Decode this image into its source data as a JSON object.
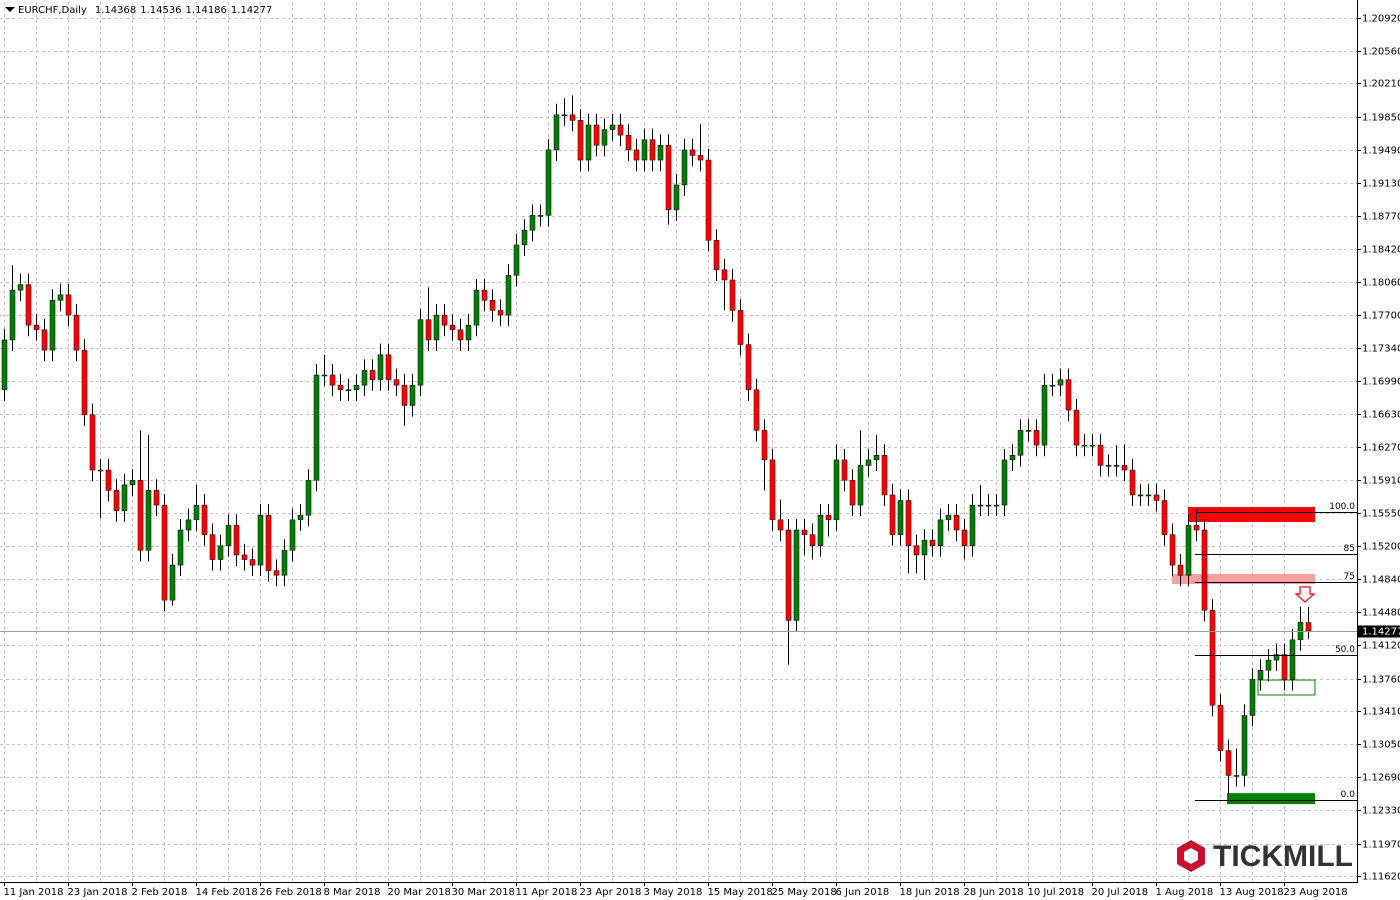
{
  "chart_data": {
    "type": "candlestick",
    "title": "EURCHF,Daily",
    "categories": [
      "11 Jan 2018",
      null,
      null,
      null,
      null,
      null,
      null,
      null,
      "23 Jan 2018",
      null,
      null,
      null,
      null,
      null,
      null,
      null,
      "2 Feb 2018",
      null,
      null,
      null,
      null,
      null,
      null,
      null,
      "14 Feb 2018",
      null,
      null,
      null,
      null,
      null,
      null,
      null,
      "26 Feb 2018",
      null,
      null,
      null,
      null,
      null,
      null,
      null,
      "8 Mar 2018",
      null,
      null,
      null,
      null,
      null,
      null,
      null,
      "20 Mar 2018",
      null,
      null,
      null,
      null,
      null,
      null,
      null,
      "30 Mar 2018",
      null,
      null,
      null,
      null,
      null,
      null,
      null,
      "11 Apr 2018",
      null,
      null,
      null,
      null,
      null,
      null,
      null,
      "23 Apr 2018",
      null,
      null,
      null,
      null,
      null,
      null,
      null,
      "3 May 2018",
      null,
      null,
      null,
      null,
      null,
      null,
      null,
      "15 May 2018",
      null,
      null,
      null,
      null,
      null,
      null,
      null,
      "25 May 2018",
      null,
      null,
      null,
      null,
      null,
      null,
      null,
      "6 Jun 2018",
      null,
      null,
      null,
      null,
      null,
      null,
      null,
      "18 Jun 2018",
      null,
      null,
      null,
      null,
      null,
      null,
      null,
      "28 Jun 2018",
      null,
      null,
      null,
      null,
      null,
      null,
      null,
      "10 Jul 2018",
      null,
      null,
      null,
      null,
      null,
      null,
      null,
      "20 Jul 2018",
      null,
      null,
      null,
      null,
      null,
      null,
      null,
      "1 Aug 2018",
      null,
      null,
      null,
      null,
      null,
      null,
      null,
      "13 Aug 2018",
      null,
      null,
      null,
      null,
      null,
      null,
      null,
      "23 Aug 2018",
      null,
      null,
      null
    ],
    "open": [
      1.1689,
      1.1743,
      1.1797,
      1.1803,
      1.1759,
      1.1754,
      1.1732,
      1.1786,
      1.1792,
      1.177,
      1.1732,
      1.1662,
      1.1602,
      1.1602,
      1.158,
      1.1558,
      1.1586,
      1.1591,
      1.1515,
      1.158,
      1.1564,
      1.1461,
      1.1499,
      1.1537,
      1.1548,
      1.1564,
      1.1532,
      1.1505,
      1.152,
      1.1542,
      1.151,
      1.1505,
      1.1499,
      1.1553,
      1.1493,
      1.1488,
      1.1515,
      1.1548,
      1.1553,
      1.1591,
      1.1705,
      1.1705,
      1.1694,
      1.1689,
      1.1689,
      1.1694,
      1.171,
      1.17,
      1.1727,
      1.17,
      1.1694,
      1.1672,
      1.1694,
      1.1765,
      1.1743,
      1.177,
      1.1759,
      1.1754,
      1.1743,
      1.1759,
      1.1797,
      1.1786,
      1.1775,
      1.177,
      1.1813,
      1.1846,
      1.1862,
      1.1878,
      1.1878,
      1.1949,
      1.1987,
      1.1987,
      1.1981,
      1.1938,
      1.1976,
      1.1954,
      1.1971,
      1.1976,
      1.1965,
      1.1949,
      1.1938,
      1.196,
      1.1938,
      1.1954,
      1.1884,
      1.1911,
      1.1949,
      1.1943,
      1.1938,
      1.1851,
      1.1819,
      1.1808,
      1.1775,
      1.1738,
      1.1689,
      1.1645,
      1.1613,
      1.1548,
      1.1537,
      1.1439,
      1.1537,
      1.1532,
      1.152,
      1.1553,
      1.1548,
      1.1613,
      1.1591,
      1.1564,
      1.1607,
      1.1613,
      1.1618,
      1.1575,
      1.1532,
      1.1569,
      1.152,
      1.151,
      1.1526,
      1.152,
      1.1548,
      1.1553,
      1.1537,
      1.152,
      1.1564,
      1.1564,
      1.1564,
      1.1564,
      1.1613,
      1.1618,
      1.1645,
      1.1645,
      1.1629,
      1.1694,
      1.1694,
      1.17,
      1.1667,
      1.1629,
      1.1629,
      1.1629,
      1.1607,
      1.1607,
      1.1607,
      1.1602,
      1.1575,
      1.1575,
      1.1575,
      1.1569,
      1.1532,
      1.1499,
      1.1488,
      1.1542,
      1.1537,
      1.145,
      1.1347,
      1.1298,
      1.1271,
      1.1271,
      1.1336,
      1.1375,
      1.1385,
      1.1396,
      1.1402,
      1.1375,
      1.1418,
      1.14368
    ],
    "high": [
      1.1755,
      1.1824,
      1.1815,
      1.1815,
      1.1771,
      1.1766,
      1.1798,
      1.1804,
      1.1804,
      1.1782,
      1.1744,
      1.1674,
      1.1614,
      1.1614,
      1.1592,
      1.1598,
      1.1603,
      1.1645,
      1.164,
      1.1592,
      1.1576,
      1.1511,
      1.1549,
      1.156,
      1.1586,
      1.1576,
      1.1544,
      1.1532,
      1.1554,
      1.1554,
      1.1522,
      1.1517,
      1.1565,
      1.1565,
      1.1505,
      1.1527,
      1.156,
      1.1565,
      1.1603,
      1.1717,
      1.1727,
      1.1717,
      1.1706,
      1.1701,
      1.1706,
      1.1722,
      1.1722,
      1.1739,
      1.1739,
      1.1712,
      1.1706,
      1.1706,
      1.1777,
      1.18,
      1.1782,
      1.1782,
      1.1771,
      1.1766,
      1.1771,
      1.1809,
      1.1809,
      1.1798,
      1.1787,
      1.1825,
      1.1858,
      1.1874,
      1.189,
      1.189,
      1.1961,
      1.1999,
      1.2005,
      1.2008,
      1.1993,
      1.1988,
      1.1988,
      1.1983,
      1.1988,
      1.1988,
      1.1977,
      1.1961,
      1.1972,
      1.1972,
      1.1966,
      1.1966,
      1.1923,
      1.1961,
      1.1961,
      1.1977,
      1.195,
      1.1863,
      1.1831,
      1.182,
      1.1787,
      1.175,
      1.1701,
      1.1657,
      1.1625,
      1.157,
      1.1549,
      1.1549,
      1.1549,
      1.1544,
      1.1565,
      1.1565,
      1.163,
      1.1625,
      1.1603,
      1.1645,
      1.1625,
      1.164,
      1.163,
      1.1587,
      1.1581,
      1.1581,
      1.1532,
      1.1538,
      1.1538,
      1.156,
      1.1565,
      1.1565,
      1.1549,
      1.1576,
      1.1586,
      1.1576,
      1.1576,
      1.1625,
      1.163,
      1.1657,
      1.1657,
      1.1657,
      1.1706,
      1.1706,
      1.1712,
      1.1712,
      1.1679,
      1.1641,
      1.1641,
      1.1641,
      1.1619,
      1.1629,
      1.163,
      1.1614,
      1.1587,
      1.1587,
      1.1587,
      1.1581,
      1.1544,
      1.1511,
      1.1554,
      1.156,
      1.1549,
      1.1462,
      1.1359,
      1.131,
      1.13,
      1.1348,
      1.1387,
      1.1397,
      1.1408,
      1.1414,
      1.1414,
      1.143,
      1.1454,
      1.14536
    ],
    "low": [
      1.1677,
      1.1731,
      1.1785,
      1.1747,
      1.1742,
      1.172,
      1.172,
      1.1774,
      1.1758,
      1.172,
      1.165,
      1.159,
      1.155,
      1.1568,
      1.1546,
      1.1546,
      1.1574,
      1.1503,
      1.1503,
      1.1552,
      1.1449,
      1.1455,
      1.1487,
      1.1525,
      1.1536,
      1.152,
      1.1493,
      1.1493,
      1.1508,
      1.1498,
      1.1493,
      1.1487,
      1.1487,
      1.1481,
      1.1476,
      1.1476,
      1.1503,
      1.1536,
      1.1541,
      1.1579,
      1.1693,
      1.1682,
      1.1677,
      1.1677,
      1.1677,
      1.1682,
      1.1688,
      1.1688,
      1.1688,
      1.1682,
      1.165,
      1.166,
      1.1682,
      1.1731,
      1.1731,
      1.1747,
      1.1742,
      1.1731,
      1.1731,
      1.1747,
      1.1774,
      1.1763,
      1.1758,
      1.1758,
      1.1801,
      1.1834,
      1.185,
      1.1866,
      1.1866,
      1.1937,
      1.1975,
      1.1969,
      1.1926,
      1.1926,
      1.1942,
      1.1942,
      1.1959,
      1.1953,
      1.1937,
      1.1926,
      1.1926,
      1.1926,
      1.1926,
      1.1868,
      1.1872,
      1.1899,
      1.1931,
      1.1926,
      1.1839,
      1.1807,
      1.1775,
      1.1763,
      1.1726,
      1.1677,
      1.1633,
      1.158,
      1.1536,
      1.1525,
      1.1391,
      1.1427,
      1.151,
      1.1505,
      1.1508,
      1.153,
      1.1536,
      1.1579,
      1.1552,
      1.1552,
      1.1595,
      1.1601,
      1.1563,
      1.152,
      1.152,
      1.149,
      1.149,
      1.1483,
      1.1508,
      1.1508,
      1.1536,
      1.1525,
      1.1505,
      1.1508,
      1.1552,
      1.1552,
      1.1552,
      1.1552,
      1.1601,
      1.1606,
      1.1633,
      1.1617,
      1.1617,
      1.1682,
      1.1682,
      1.1655,
      1.1617,
      1.1617,
      1.1617,
      1.1595,
      1.1595,
      1.1595,
      1.159,
      1.1563,
      1.1563,
      1.1563,
      1.1557,
      1.152,
      1.1487,
      1.1476,
      1.1476,
      1.1525,
      1.1438,
      1.1335,
      1.1286,
      1.125,
      1.1259,
      1.1259,
      1.1324,
      1.1363,
      1.1373,
      1.1384,
      1.1363,
      1.1363,
      1.1406,
      1.14186
    ],
    "close": [
      1.1743,
      1.1797,
      1.1803,
      1.1759,
      1.1754,
      1.1732,
      1.1786,
      1.1792,
      1.177,
      1.1732,
      1.1662,
      1.1602,
      1.1602,
      1.158,
      1.1558,
      1.1586,
      1.1591,
      1.1515,
      1.158,
      1.1564,
      1.1461,
      1.1499,
      1.1537,
      1.1548,
      1.1564,
      1.1532,
      1.1505,
      1.152,
      1.1542,
      1.151,
      1.1505,
      1.1499,
      1.1553,
      1.1493,
      1.1488,
      1.1515,
      1.1548,
      1.1553,
      1.1591,
      1.1705,
      1.1705,
      1.1694,
      1.1689,
      1.1689,
      1.1694,
      1.171,
      1.17,
      1.1727,
      1.17,
      1.1694,
      1.1672,
      1.1694,
      1.1765,
      1.1743,
      1.177,
      1.1759,
      1.1754,
      1.1743,
      1.1759,
      1.1797,
      1.1786,
      1.1775,
      1.177,
      1.1813,
      1.1846,
      1.1862,
      1.1878,
      1.1878,
      1.1949,
      1.1987,
      1.1987,
      1.1981,
      1.1938,
      1.1976,
      1.1954,
      1.1971,
      1.1976,
      1.1965,
      1.1949,
      1.1938,
      1.196,
      1.1938,
      1.1954,
      1.1884,
      1.1911,
      1.1949,
      1.1943,
      1.1938,
      1.1851,
      1.1819,
      1.1808,
      1.1775,
      1.1738,
      1.1689,
      1.1645,
      1.1613,
      1.1548,
      1.1537,
      1.1439,
      1.1537,
      1.1532,
      1.152,
      1.1553,
      1.1548,
      1.1613,
      1.1591,
      1.1564,
      1.1607,
      1.1613,
      1.1618,
      1.1575,
      1.1532,
      1.1569,
      1.152,
      1.151,
      1.1526,
      1.152,
      1.1548,
      1.1553,
      1.1537,
      1.152,
      1.1564,
      1.1564,
      1.1564,
      1.1564,
      1.1613,
      1.1618,
      1.1645,
      1.1645,
      1.1629,
      1.1694,
      1.1694,
      1.17,
      1.1667,
      1.1629,
      1.1629,
      1.1629,
      1.1607,
      1.1607,
      1.1607,
      1.1602,
      1.1575,
      1.1575,
      1.1575,
      1.1569,
      1.1532,
      1.1499,
      1.1488,
      1.1542,
      1.1537,
      1.145,
      1.1347,
      1.1298,
      1.1271,
      1.1271,
      1.1336,
      1.1375,
      1.1385,
      1.1396,
      1.1402,
      1.1375,
      1.1418,
      1.1437,
      1.14277
    ],
    "up_color": "#008000",
    "down_color": "#ff0000",
    "ylim": [
      1.11555,
      1.21093
    ],
    "yticks": [
      {
        "value": 1.2092,
        "label": "1.20920"
      },
      {
        "value": 1.2056,
        "label": "1.20560"
      },
      {
        "value": 1.2021,
        "label": "1.20210"
      },
      {
        "value": 1.1985,
        "label": "1.19850"
      },
      {
        "value": 1.1949,
        "label": "1.19490"
      },
      {
        "value": 1.1913,
        "label": "1.19130"
      },
      {
        "value": 1.1877,
        "label": "1.18770"
      },
      {
        "value": 1.1842,
        "label": "1.18420"
      },
      {
        "value": 1.1806,
        "label": "1.18060"
      },
      {
        "value": 1.177,
        "label": "1.17700"
      },
      {
        "value": 1.1734,
        "label": "1.17340"
      },
      {
        "value": 1.1699,
        "label": "1.16990"
      },
      {
        "value": 1.1663,
        "label": "1.16630"
      },
      {
        "value": 1.1627,
        "label": "1.16270"
      },
      {
        "value": 1.1591,
        "label": "1.15910"
      },
      {
        "value": 1.1555,
        "label": "1.15550"
      },
      {
        "value": 1.152,
        "label": "1.15200"
      },
      {
        "value": 1.1484,
        "label": "1.14840"
      },
      {
        "value": 1.1448,
        "label": "1.14480"
      },
      {
        "value": 1.1412,
        "label": "1.14120"
      },
      {
        "value": 1.1376,
        "label": "1.13760"
      },
      {
        "value": 1.1341,
        "label": "1.13410"
      },
      {
        "value": 1.1305,
        "label": "1.13050"
      },
      {
        "value": 1.1269,
        "label": "1.12690"
      },
      {
        "value": 1.1233,
        "label": "1.12330"
      },
      {
        "value": 1.1197,
        "label": "1.11970"
      },
      {
        "value": 1.1162,
        "label": "1.11620"
      }
    ],
    "grid": true,
    "fib_levels": [
      {
        "price": 1.1556,
        "label": "100.0"
      },
      {
        "price": 1.1511,
        "label": "85"
      },
      {
        "price": 1.1481,
        "label": "75"
      },
      {
        "price": 1.1402,
        "label": "50.0"
      },
      {
        "price": 1.1244,
        "label": "0.0"
      }
    ],
    "zones": [
      {
        "top": 1.15619,
        "bottom": 1.15457,
        "color": "#ff0000"
      },
      {
        "top": 1.14893,
        "bottom": 1.14785,
        "color": "#f4a0a0"
      },
      {
        "top": 1.12518,
        "bottom": 1.12399,
        "color": "#008000"
      },
      {
        "top": 1.13744,
        "bottom": 1.13582,
        "color": "#008000",
        "outline": true
      }
    ],
    "watermark": "TICKMILL"
  }
}
